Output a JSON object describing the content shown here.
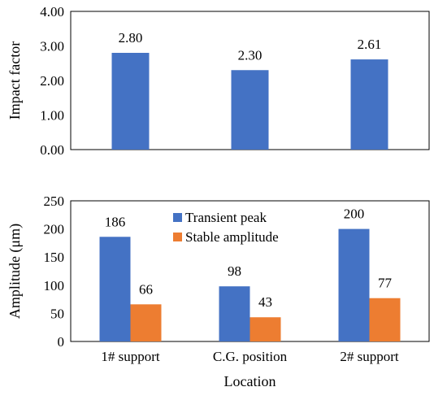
{
  "chart_data": [
    {
      "type": "bar",
      "title": "",
      "ylabel": "Impact factor",
      "xlabel": "",
      "ylim": [
        0,
        4
      ],
      "yticks": [
        "0.00",
        "1.00",
        "2.00",
        "3.00",
        "4.00"
      ],
      "categories": [
        "1# support",
        "C.G. position",
        "2# support"
      ],
      "series": [
        {
          "values": [
            2.8,
            2.3,
            2.61
          ],
          "labels": [
            "2.80",
            "2.30",
            "2.61"
          ],
          "color": "#4472C4"
        }
      ],
      "show_category_labels": false,
      "grid": false
    },
    {
      "type": "bar",
      "title": "",
      "ylabel": "Amplitude (μm)",
      "xlabel": "Location",
      "ylim": [
        0,
        250
      ],
      "yticks": [
        "0",
        "50",
        "100",
        "150",
        "200",
        "250"
      ],
      "categories": [
        "1# support",
        "C.G. position",
        "2# support"
      ],
      "series": [
        {
          "name": "Transient peak",
          "values": [
            186,
            98,
            200
          ],
          "labels": [
            "186",
            "98",
            "200"
          ],
          "color": "#4472C4"
        },
        {
          "name": "Stable amplitude",
          "values": [
            66,
            43,
            77
          ],
          "labels": [
            "66",
            "43",
            "77"
          ],
          "color": "#ED7D31"
        }
      ],
      "legend": "top-center",
      "show_category_labels": true,
      "grid": false
    }
  ]
}
